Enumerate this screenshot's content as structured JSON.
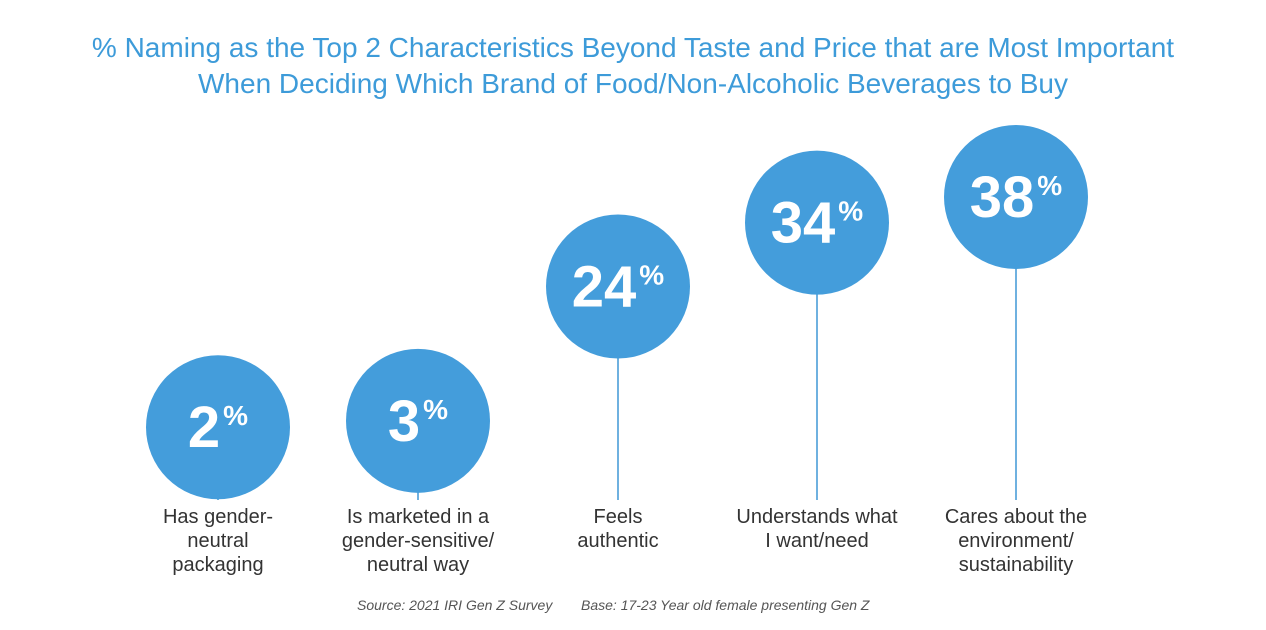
{
  "chart_data": {
    "type": "lollipop",
    "title": "% Naming as the Top 2 Characteristics Beyond Taste and Price that are Most Important\nWhen Deciding Which Brand of Food/Non-Alcoholic Beverages to Buy",
    "categories": [
      "Has gender-\nneutral\npackaging",
      "Is marketed in a\ngender-sensitive/\nneutral way",
      "Feels\nauthentic",
      "Understands what\nI want/need",
      "Cares about the\nenvironment/\nsustainability"
    ],
    "values": [
      2,
      3,
      24,
      34,
      38
    ],
    "value_labels": [
      "2%",
      "3%",
      "24%",
      "34%",
      "38%"
    ],
    "color": "#449ddb",
    "source": "Source: 2021 IRI Gen Z Survey",
    "base": "Base: 17-23 Year old female presenting Gen Z"
  }
}
